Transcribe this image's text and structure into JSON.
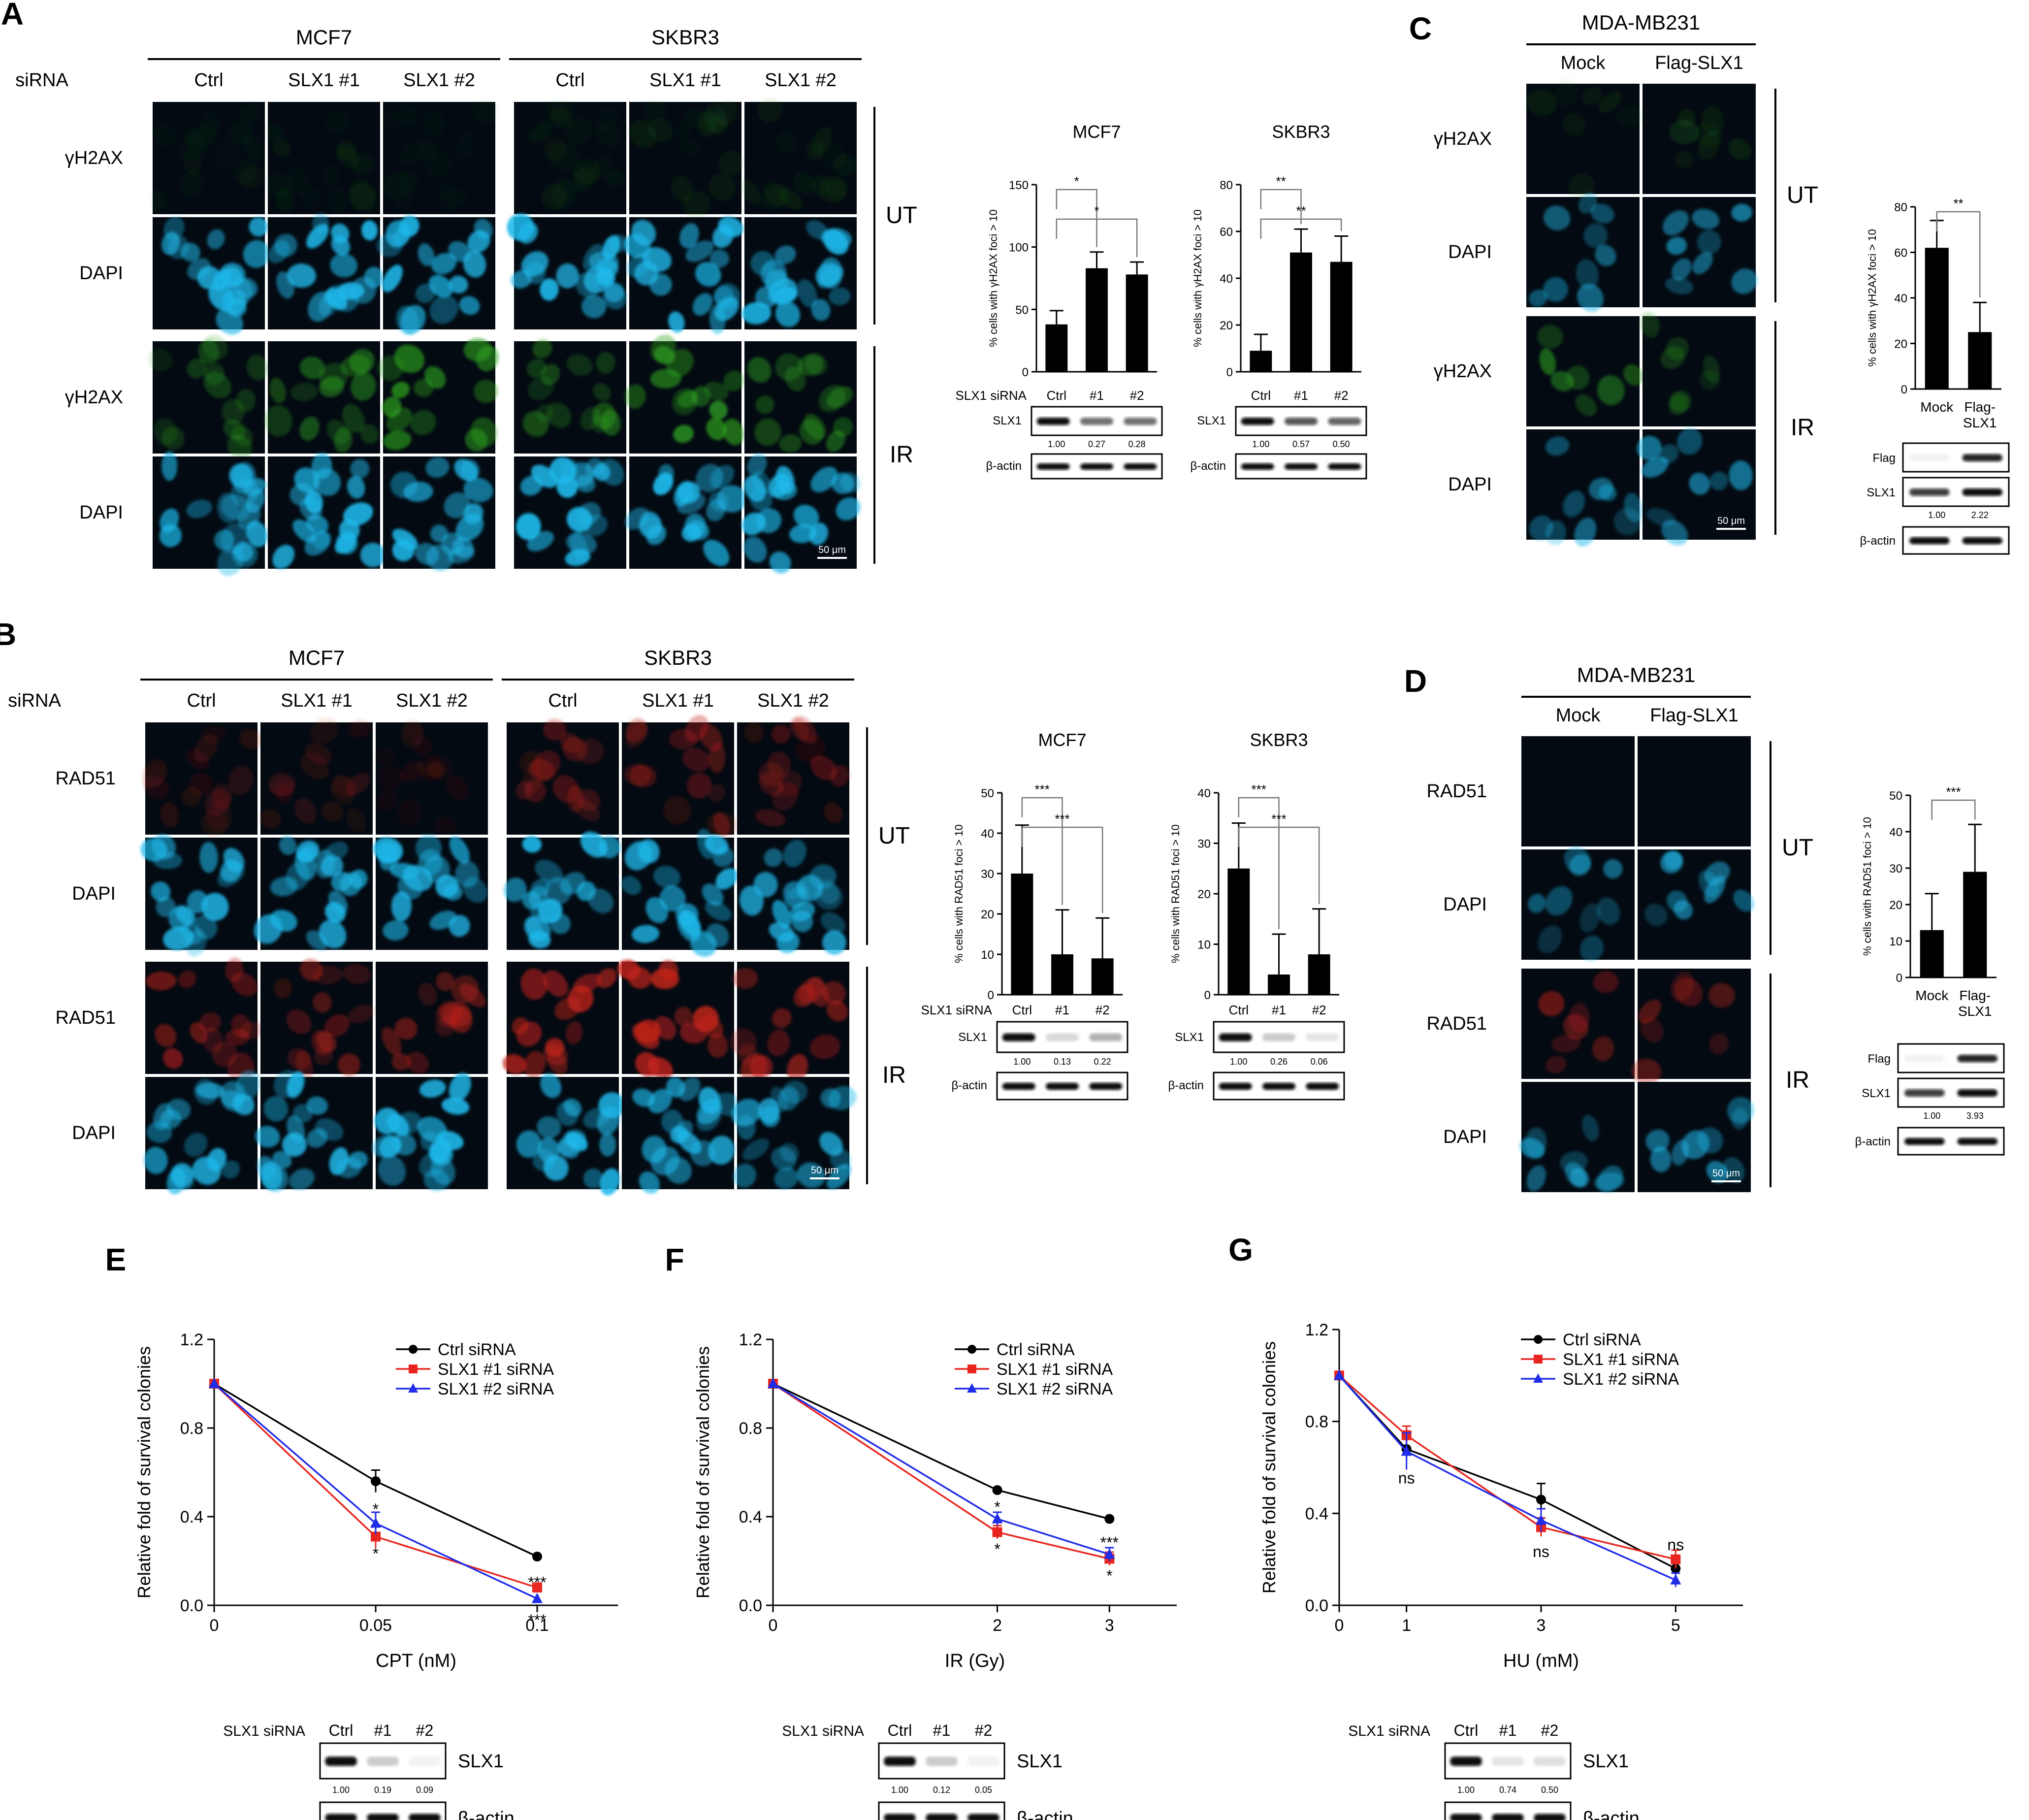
{
  "colors": {
    "black": "#000000",
    "red": "#e8261f",
    "blue": "#1f2ce8",
    "dapi": "#1fb8ea",
    "gfp": "#2fa51f",
    "rad": "#c4231b",
    "panel_bg": "#030a12"
  },
  "panels": {
    "A": {
      "letter": "A",
      "siRNA": "siRNA",
      "cell_lines": [
        "MCF7",
        "SKBR3"
      ],
      "conditions": [
        "Ctrl",
        "SLX1 #1",
        "SLX1 #2"
      ],
      "rows": [
        "γH2AX",
        "DAPI",
        "γH2AX",
        "DAPI"
      ],
      "treat": [
        "UT",
        "IR"
      ],
      "scale": "50 μm",
      "bar_labels": [
        "Ctrl",
        "#1",
        "#2"
      ],
      "sirna_label": "SLX1 siRNA",
      "slx1": "SLX1",
      "actin": "β-actin",
      "ylabel": "% cells with γH2AX foci > 10",
      "mcf7_quant": [
        "1.00",
        "0.27",
        "0.28"
      ],
      "skbr3_quant": [
        "1.00",
        "0.57",
        "0.50"
      ]
    },
    "B": {
      "letter": "B",
      "siRNA": "siRNA",
      "cell_lines": [
        "MCF7",
        "SKBR3"
      ],
      "conditions": [
        "Ctrl",
        "SLX1 #1",
        "SLX1 #2"
      ],
      "rows": [
        "RAD51",
        "DAPI",
        "RAD51",
        "DAPI"
      ],
      "treat": [
        "UT",
        "IR"
      ],
      "scale": "50 μm",
      "bar_labels": [
        "Ctrl",
        "#1",
        "#2"
      ],
      "sirna_label": "SLX1 siRNA",
      "slx1": "SLX1",
      "actin": "β-actin",
      "ylabel": "% cells with RAD51 foci > 10",
      "mcf7_quant": [
        "1.00",
        "0.13",
        "0.22"
      ],
      "skbr3_quant": [
        "1.00",
        "0.26",
        "0.06"
      ]
    },
    "C": {
      "letter": "C",
      "cell_line": "MDA-MB231",
      "conditions": [
        "Mock",
        "Flag-SLX1"
      ],
      "rows": [
        "γH2AX",
        "DAPI",
        "γH2AX",
        "DAPI"
      ],
      "treat": [
        "UT",
        "IR"
      ],
      "scale": "50 μm",
      "bar_labels": [
        "Mock",
        "Flag-\nSLX1"
      ],
      "flag": "Flag",
      "slx1": "SLX1",
      "actin": "β-actin",
      "ylabel": "% cells with γH2AX foci > 10",
      "quant": [
        "1.00",
        "2.22"
      ]
    },
    "D": {
      "letter": "D",
      "cell_line": "MDA-MB231",
      "conditions": [
        "Mock",
        "Flag-SLX1"
      ],
      "rows": [
        "RAD51",
        "DAPI",
        "RAD51",
        "DAPI"
      ],
      "treat": [
        "UT",
        "IR"
      ],
      "scale": "50 μm",
      "bar_labels": [
        "Mock",
        "Flag-\nSLX1"
      ],
      "flag": "Flag",
      "slx1": "SLX1",
      "actin": "β-actin",
      "ylabel": "% cells with RAD51 foci > 10",
      "quant": [
        "1.00",
        "3.93"
      ]
    },
    "E": {
      "letter": "E"
    },
    "F": {
      "letter": "F"
    },
    "G": {
      "letter": "G"
    },
    "blot_labels": {
      "sirna": "SLX1 siRNA",
      "lanes": [
        "Ctrl",
        "#1",
        "#2"
      ],
      "slx1": "SLX1",
      "actin": "β-actin"
    },
    "blot_quant": {
      "E": [
        "1.00",
        "0.19",
        "0.09"
      ],
      "F": [
        "1.00",
        "0.12",
        "0.05"
      ],
      "G": [
        "1.00",
        "0.74",
        "0.50"
      ]
    }
  },
  "chart_data": [
    {
      "id": "A-MCF7",
      "type": "bar",
      "title": "MCF7",
      "categories": [
        "Ctrl",
        "#1",
        "#2"
      ],
      "values": [
        38,
        83,
        78
      ],
      "errors": [
        11,
        13,
        10
      ],
      "ylabel": "% cells with γH2AX foci > 10",
      "ylim": [
        0,
        150
      ],
      "yticks": [
        0,
        50,
        100,
        150
      ],
      "significance": [
        {
          "pair": [
            0,
            1
          ],
          "label": "*"
        },
        {
          "pair": [
            0,
            2
          ],
          "label": "*"
        }
      ]
    },
    {
      "id": "A-SKBR3",
      "type": "bar",
      "title": "SKBR3",
      "categories": [
        "Ctrl",
        "#1",
        "#2"
      ],
      "values": [
        9,
        51,
        47
      ],
      "errors": [
        7,
        10,
        11
      ],
      "ylabel": "% cells with γH2AX foci > 10",
      "ylim": [
        0,
        80
      ],
      "yticks": [
        0,
        20,
        40,
        60,
        80
      ],
      "significance": [
        {
          "pair": [
            0,
            1
          ],
          "label": "**"
        },
        {
          "pair": [
            0,
            2
          ],
          "label": "**"
        }
      ]
    },
    {
      "id": "B-MCF7",
      "type": "bar",
      "title": "MCF7",
      "categories": [
        "Ctrl",
        "#1",
        "#2"
      ],
      "values": [
        30,
        10,
        9
      ],
      "errors": [
        12,
        11,
        10
      ],
      "ylabel": "% cells with RAD51 foci > 10",
      "ylim": [
        0,
        50
      ],
      "yticks": [
        0,
        10,
        20,
        30,
        40,
        50
      ],
      "significance": [
        {
          "pair": [
            0,
            1
          ],
          "label": "***"
        },
        {
          "pair": [
            0,
            2
          ],
          "label": "***"
        }
      ]
    },
    {
      "id": "B-SKBR3",
      "type": "bar",
      "title": "SKBR3",
      "categories": [
        "Ctrl",
        "#1",
        "#2"
      ],
      "values": [
        25,
        4,
        8
      ],
      "errors": [
        9,
        8,
        9
      ],
      "ylabel": "% cells with RAD51 foci > 10",
      "ylim": [
        0,
        40
      ],
      "yticks": [
        0,
        10,
        20,
        30,
        40
      ],
      "significance": [
        {
          "pair": [
            0,
            1
          ],
          "label": "***"
        },
        {
          "pair": [
            0,
            2
          ],
          "label": "***"
        }
      ]
    },
    {
      "id": "C",
      "type": "bar",
      "categories": [
        "Mock",
        "Flag-SLX1"
      ],
      "values": [
        62,
        25
      ],
      "errors": [
        12,
        13
      ],
      "ylabel": "% cells with γH2AX foci > 10",
      "ylim": [
        0,
        80
      ],
      "yticks": [
        0,
        20,
        40,
        60,
        80
      ],
      "significance": [
        {
          "pair": [
            0,
            1
          ],
          "label": "**"
        }
      ]
    },
    {
      "id": "D",
      "type": "bar",
      "categories": [
        "Mock",
        "Flag-SLX1"
      ],
      "values": [
        13,
        29
      ],
      "errors": [
        10,
        13
      ],
      "ylabel": "% cells with RAD51 foci > 10",
      "ylim": [
        0,
        50
      ],
      "yticks": [
        0,
        10,
        20,
        30,
        40,
        50
      ],
      "significance": [
        {
          "pair": [
            0,
            1
          ],
          "label": "***"
        }
      ]
    },
    {
      "id": "E",
      "type": "line",
      "x": [
        0,
        0.05,
        0.1
      ],
      "xticks": [
        "0",
        "0.05",
        "0.1"
      ],
      "xlabel": "CPT (nM)",
      "ylabel": "Relative fold of survival colonies",
      "ylim": [
        0,
        1.2
      ],
      "yticks": [
        "0.0",
        "0.4",
        "0.8",
        "1.2"
      ],
      "xlim": [
        0,
        0.125
      ],
      "legend": "top-right",
      "series": [
        {
          "name": "Ctrl siRNA",
          "values": [
            1.0,
            0.56,
            0.22
          ],
          "errors": [
            0,
            0.05,
            0
          ]
        },
        {
          "name": "SLX1 #1 siRNA",
          "values": [
            1.0,
            0.31,
            0.08
          ],
          "errors": [
            0,
            0.05,
            0.02
          ]
        },
        {
          "name": "SLX1 #2 siRNA",
          "values": [
            1.0,
            0.37,
            0.03
          ],
          "errors": [
            0,
            0.05,
            0
          ]
        }
      ],
      "annotations": [
        {
          "x": 0.05,
          "y": 0.44,
          "text": "*"
        },
        {
          "x": 0.05,
          "y": 0.24,
          "text": "*"
        },
        {
          "x": 0.1,
          "y": 0.11,
          "text": "***"
        },
        {
          "x": 0.1,
          "y": -0.06,
          "text": "***"
        }
      ]
    },
    {
      "id": "F",
      "type": "line",
      "x": [
        0,
        2,
        3
      ],
      "xticks": [
        "0",
        "2",
        "3"
      ],
      "xlabel": "IR (Gy)",
      "ylabel": "Relative fold of survival colonies",
      "ylim": [
        0,
        1.2
      ],
      "yticks": [
        "0.0",
        "0.4",
        "0.8",
        "1.2"
      ],
      "xlim": [
        0,
        3.6
      ],
      "legend": "top-right",
      "series": [
        {
          "name": "Ctrl siRNA",
          "values": [
            1.0,
            0.52,
            0.39
          ],
          "errors": [
            0,
            0,
            0
          ]
        },
        {
          "name": "SLX1 #1 siRNA",
          "values": [
            1.0,
            0.33,
            0.21
          ],
          "errors": [
            0,
            0.03,
            0.03
          ]
        },
        {
          "name": "SLX1 #2 siRNA",
          "values": [
            1.0,
            0.39,
            0.23
          ],
          "errors": [
            0,
            0.03,
            0.03
          ]
        }
      ],
      "annotations": [
        {
          "x": 2,
          "y": 0.45,
          "text": "*"
        },
        {
          "x": 2,
          "y": 0.26,
          "text": "*"
        },
        {
          "x": 3,
          "y": 0.29,
          "text": "***"
        },
        {
          "x": 3,
          "y": 0.14,
          "text": "*"
        }
      ]
    },
    {
      "id": "G",
      "type": "line",
      "x": [
        0,
        1,
        3,
        5
      ],
      "xticks": [
        "0",
        "1",
        "3",
        "5"
      ],
      "xlabel": "HU (mM)",
      "ylabel": "Relative fold of survival colonies",
      "ylim": [
        0,
        1.2
      ],
      "yticks": [
        "0.0",
        "0.4",
        "0.8",
        "1.2"
      ],
      "xlim": [
        0,
        6
      ],
      "legend": "top-right",
      "series": [
        {
          "name": "Ctrl siRNA",
          "values": [
            1.0,
            0.68,
            0.46,
            0.16
          ],
          "errors": [
            0,
            0.05,
            0.07,
            0.03
          ]
        },
        {
          "name": "SLX1 #1 siRNA",
          "values": [
            1.0,
            0.74,
            0.34,
            0.2
          ],
          "errors": [
            0,
            0.04,
            0.04,
            0.04
          ]
        },
        {
          "name": "SLX1 #2 siRNA",
          "values": [
            1.0,
            0.67,
            0.37,
            0.11
          ],
          "errors": [
            0,
            0.08,
            0.05,
            0.03
          ]
        }
      ],
      "annotations": [
        {
          "x": 1,
          "y": 0.56,
          "text": "ns"
        },
        {
          "x": 3,
          "y": 0.24,
          "text": "ns"
        },
        {
          "x": 5,
          "y": 0.27,
          "text": "ns"
        }
      ]
    }
  ]
}
